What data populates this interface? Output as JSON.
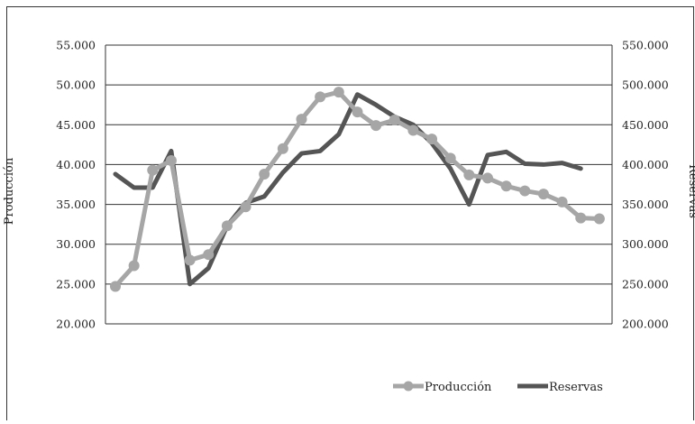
{
  "chart_data": {
    "type": "line",
    "title": "",
    "y_left_label": "Producción",
    "y_right_label": "Reservas",
    "y_left_ticks": [
      "20.000",
      "25.000",
      "30.000",
      "35.000",
      "40.000",
      "45.000",
      "50.000",
      "55.000"
    ],
    "y_right_ticks": [
      "200.000",
      "250.000",
      "300.000",
      "350.000",
      "400.000",
      "450.000",
      "500.000",
      "550.000"
    ],
    "y_left_range": [
      20000,
      55000
    ],
    "y_right_range": [
      200000,
      550000
    ],
    "grid": true,
    "legend_position": "bottom-right",
    "series": [
      {
        "name": "Producción",
        "axis": "left",
        "color": "#a6a6a6",
        "marker": "circle",
        "values": [
          24700,
          27300,
          39300,
          40500,
          28000,
          28700,
          32300,
          34700,
          38800,
          42000,
          45700,
          48500,
          49100,
          46600,
          44900,
          45600,
          44300,
          43200,
          40800,
          38700,
          38300,
          37300,
          36700,
          36300,
          35300,
          33300,
          33200
        ]
      },
      {
        "name": "Reservas",
        "axis": "right",
        "color": "#555555",
        "marker": "none",
        "values": [
          388000,
          371000,
          371000,
          417000,
          250000,
          270000,
          323000,
          352000,
          360000,
          390000,
          414000,
          417000,
          438000,
          488000,
          475000,
          460000,
          450000,
          427000,
          395000,
          350000,
          412000,
          416000,
          401000,
          400000,
          402000,
          395000
        ]
      }
    ]
  },
  "legend": {
    "produccion": "Producción",
    "reservas": "Reservas"
  }
}
